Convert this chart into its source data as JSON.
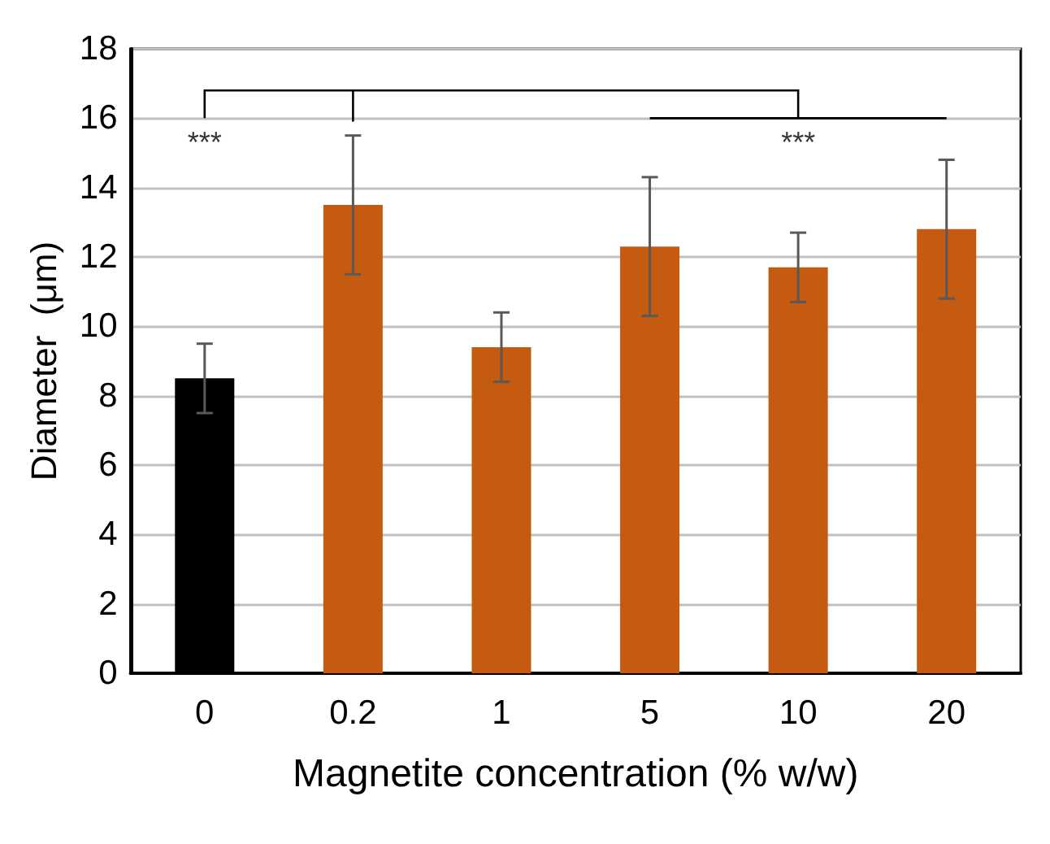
{
  "chart_data": {
    "type": "bar",
    "xlabel": "Magnetite concentration (% w/w)",
    "ylabel": "Diameter  (μm)",
    "categories": [
      "0",
      "0.2",
      "1",
      "5",
      "10",
      "20"
    ],
    "values": [
      8.5,
      13.5,
      9.4,
      12.3,
      11.7,
      12.8
    ],
    "colors": [
      "#000000",
      "#c55a11",
      "#c55a11",
      "#c55a11",
      "#c55a11",
      "#c55a11"
    ],
    "errors": [
      1.0,
      2.0,
      1.0,
      2.0,
      1.0,
      2.0
    ],
    "ylim": [
      0,
      18
    ],
    "yticks": [
      0,
      2,
      4,
      6,
      8,
      10,
      12,
      14,
      16,
      18
    ],
    "grid": "y",
    "annotations": [
      "***",
      "***"
    ]
  }
}
